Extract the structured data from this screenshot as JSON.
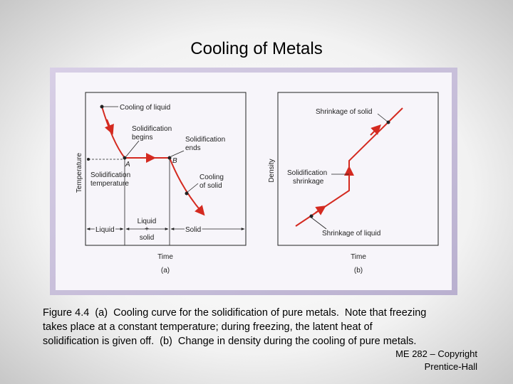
{
  "title": "Cooling of Metals",
  "figure": {
    "panel_a": {
      "y_axis": "Temperature",
      "x_axis": "Time",
      "caption": "(a)",
      "labels": {
        "cooling_liquid": "Cooling of liquid",
        "solid_begins": [
          "Solidification",
          "begins"
        ],
        "solid_ends": [
          "Solidification",
          "ends"
        ],
        "point_a": "A",
        "point_b": "B",
        "solid_temp": [
          "Solidification",
          "temperature"
        ],
        "cooling_solid": [
          "Cooling",
          "of solid"
        ],
        "liquid_solid": [
          "Liquid",
          "+",
          "solid"
        ],
        "liquid": "Liquid",
        "solid": "Solid"
      }
    },
    "panel_b": {
      "y_axis": "Density",
      "x_axis": "Time",
      "caption": "(b)",
      "labels": {
        "shrink_solid": "Shrinkage of solid",
        "solid_shrink": [
          "Solidification",
          "shrinkage"
        ],
        "shrink_liquid": "Shrinkage of liquid"
      }
    }
  },
  "caption": [
    "Figure 4.4  (a)  Cooling curve for the solidification of pure metals.  Note that freezing",
    "takes place at a constant temperature; during freezing, the latent heat of",
    "solidification is given off.  (b)  Change in density during the cooling of pure metals."
  ],
  "footer": [
    "ME 282 – Copyright",
    "Prentice-Hall"
  ]
}
